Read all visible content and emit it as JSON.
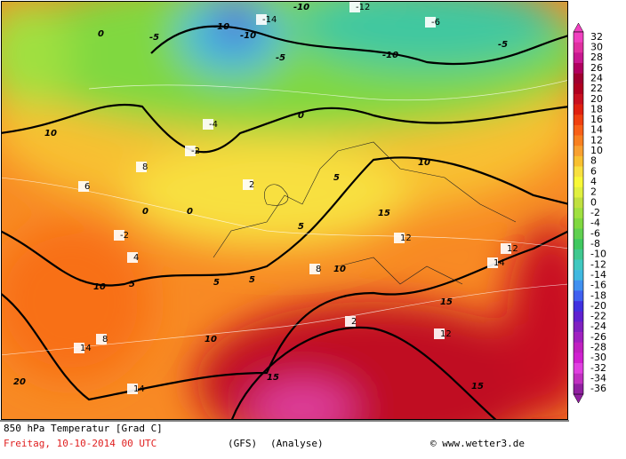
{
  "map": {
    "labels": [
      -10,
      -12,
      -14,
      -10,
      -5,
      -10,
      -10,
      -5,
      -5,
      0,
      0,
      0,
      0,
      5,
      5,
      5,
      5,
      5,
      10,
      10,
      10,
      10,
      10,
      15,
      15,
      15,
      15,
      20,
      2,
      2,
      -2,
      -2,
      8,
      8,
      12,
      12,
      14,
      14,
      6,
      4,
      -4,
      -6,
      12,
      14,
      8
    ],
    "colorbar": {
      "labels": [
        32,
        30,
        28,
        26,
        24,
        22,
        20,
        18,
        16,
        14,
        12,
        10,
        8,
        6,
        4,
        2,
        0,
        -2,
        -4,
        -6,
        -8,
        -10,
        -12,
        -14,
        -16,
        -18,
        -20,
        -22,
        -24,
        -26,
        -28,
        -30,
        -32,
        -34,
        -36
      ],
      "colors": [
        "#f040c0",
        "#e030a0",
        "#c81890",
        "#b00060",
        "#a00030",
        "#b00020",
        "#c81020",
        "#e02010",
        "#f04010",
        "#f86018",
        "#f88020",
        "#f8a030",
        "#f8c030",
        "#f8e040",
        "#f8f838",
        "#e0f040",
        "#c0e040",
        "#a0e040",
        "#80d840",
        "#60d050",
        "#40c860",
        "#40c890",
        "#40c8c0",
        "#40b8e0",
        "#4090f0",
        "#4060f0",
        "#4030e0",
        "#6020d0",
        "#8020c0",
        "#a020c0",
        "#c020c0",
        "#d020d0",
        "#e040e0",
        "#c030c0",
        "#9020a0"
      ]
    }
  },
  "footer": {
    "title": "850 hPa Temperatur [Grad C]",
    "date": "Freitag, 10-10-2014  00 UTC",
    "model": "(GFS)",
    "run": "(Analyse)",
    "credit": "© www.wetter3.de"
  }
}
